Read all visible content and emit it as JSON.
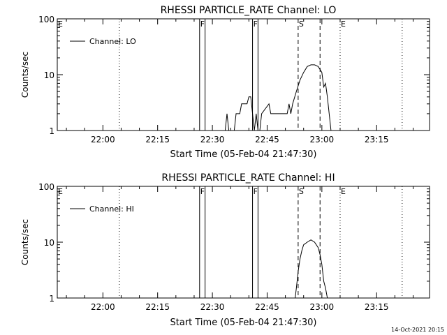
{
  "chart_data": [
    {
      "type": "line",
      "title": "RHESSI PARTICLE_RATE Channel: LO",
      "xlabel": "Start Time (05-Feb-04 21:47:30)",
      "ylabel": "Counts/sec",
      "y_scale": "log",
      "ylim": [
        1,
        100
      ],
      "xlim": [
        "21:47:30",
        "23:29:30"
      ],
      "x_ticks": [
        "22:00",
        "22:15",
        "22:30",
        "22:45",
        "23:00",
        "23:15"
      ],
      "y_ticks": [
        "1",
        "10",
        "100"
      ],
      "legend": {
        "placement": "top-left",
        "entries": [
          "Channel: LO"
        ]
      },
      "markers": [
        {
          "label": "E",
          "time": "21:47:30",
          "style": "dotted"
        },
        {
          "label": "",
          "time": "22:04:30",
          "style": "dotted"
        },
        {
          "label": "F",
          "time": "22:26:30",
          "style": "solid"
        },
        {
          "label": "",
          "time": "22:28:00",
          "style": "solid"
        },
        {
          "label": "F",
          "time": "22:41:00",
          "style": "solid"
        },
        {
          "label": "",
          "time": "22:42:30",
          "style": "solid"
        },
        {
          "label": "S",
          "time": "22:53:30",
          "style": "dashed"
        },
        {
          "label": "",
          "time": "22:59:30",
          "style": "dashed"
        },
        {
          "label": "E",
          "time": "23:05:00",
          "style": "dotted"
        },
        {
          "label": "",
          "time": "23:22:00",
          "style": "dotted"
        }
      ],
      "series": [
        {
          "name": "Channel: LO",
          "points": [
            [
              "22:32:30",
              0.8
            ],
            [
              "22:33:30",
              1.0
            ],
            [
              "22:34:00",
              2.0
            ],
            [
              "22:34:30",
              1.0
            ],
            [
              "22:35:00",
              0.8
            ],
            [
              "22:36:00",
              1.0
            ],
            [
              "22:36:30",
              2.0
            ],
            [
              "22:37:30",
              2.0
            ],
            [
              "22:38:00",
              3.0
            ],
            [
              "22:39:30",
              3.0
            ],
            [
              "22:40:00",
              4.0
            ],
            [
              "22:40:30",
              4.0
            ],
            [
              "22:41:00",
              2.0
            ],
            [
              "22:41:30",
              1.0
            ],
            [
              "22:42:00",
              2.0
            ],
            [
              "22:42:30",
              1.0
            ],
            [
              "22:43:00",
              1.0
            ],
            [
              "22:43:30",
              2.0
            ],
            [
              "22:45:30",
              3.0
            ],
            [
              "22:46:00",
              2.0
            ],
            [
              "22:50:30",
              2.0
            ],
            [
              "22:51:00",
              3.0
            ],
            [
              "22:51:30",
              2.0
            ],
            [
              "22:52:00",
              3.0
            ],
            [
              "22:53:00",
              5.0
            ],
            [
              "22:54:00",
              8.0
            ],
            [
              "22:55:00",
              11.0
            ],
            [
              "22:56:00",
              14.0
            ],
            [
              "22:57:00",
              15.0
            ],
            [
              "22:58:00",
              15.0
            ],
            [
              "22:59:00",
              14.0
            ],
            [
              "23:00:00",
              11.0
            ],
            [
              "23:00:30",
              6.0
            ],
            [
              "23:01:00",
              7.0
            ],
            [
              "23:01:30",
              4.0
            ],
            [
              "23:02:00",
              2.0
            ],
            [
              "23:02:30",
              1.0
            ],
            [
              "23:03:00",
              0.8
            ]
          ]
        }
      ]
    },
    {
      "type": "line",
      "title": "RHESSI PARTICLE_RATE Channel: HI",
      "xlabel": "Start Time (05-Feb-04 21:47:30)",
      "ylabel": "Counts/sec",
      "y_scale": "log",
      "ylim": [
        1,
        100
      ],
      "xlim": [
        "21:47:30",
        "23:29:30"
      ],
      "x_ticks": [
        "22:00",
        "22:15",
        "22:30",
        "22:45",
        "23:00",
        "23:15"
      ],
      "y_ticks": [
        "1",
        "10",
        "100"
      ],
      "legend": {
        "placement": "top-left",
        "entries": [
          "Channel: HI"
        ]
      },
      "markers": [
        {
          "label": "E",
          "time": "21:47:30",
          "style": "dotted"
        },
        {
          "label": "",
          "time": "22:04:30",
          "style": "dotted"
        },
        {
          "label": "F",
          "time": "22:26:30",
          "style": "solid"
        },
        {
          "label": "",
          "time": "22:28:00",
          "style": "solid"
        },
        {
          "label": "F",
          "time": "22:41:00",
          "style": "solid"
        },
        {
          "label": "",
          "time": "22:42:30",
          "style": "solid"
        },
        {
          "label": "S",
          "time": "22:53:30",
          "style": "dashed"
        },
        {
          "label": "",
          "time": "22:59:30",
          "style": "dashed"
        },
        {
          "label": "E",
          "time": "23:05:00",
          "style": "dotted"
        },
        {
          "label": "",
          "time": "23:22:00",
          "style": "dotted"
        }
      ],
      "series": [
        {
          "name": "Channel: HI",
          "points": [
            [
              "22:52:30",
              0.8
            ],
            [
              "22:53:00",
              1.5
            ],
            [
              "22:53:30",
              3.0
            ],
            [
              "22:54:00",
              5.0
            ],
            [
              "22:54:30",
              7.0
            ],
            [
              "22:55:00",
              9.0
            ],
            [
              "22:56:00",
              10.0
            ],
            [
              "22:57:00",
              11.0
            ],
            [
              "22:58:00",
              10.0
            ],
            [
              "22:59:00",
              8.0
            ],
            [
              "22:59:30",
              6.0
            ],
            [
              "23:00:00",
              4.0
            ],
            [
              "23:00:30",
              2.0
            ],
            [
              "23:01:00",
              1.5
            ],
            [
              "23:01:30",
              1.0
            ],
            [
              "23:02:00",
              0.8
            ]
          ]
        }
      ]
    }
  ],
  "footer": {
    "timestamp": "14-Oct-2021 20:15"
  }
}
